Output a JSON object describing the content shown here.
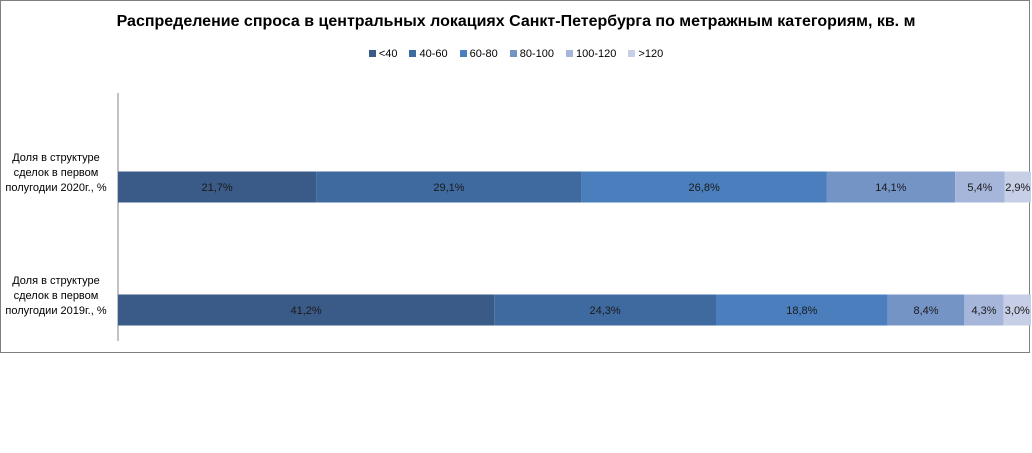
{
  "chart_data": {
    "type": "bar",
    "orientation": "horizontal",
    "stacked": "percent",
    "title": "Распределение спроса в центральных локациях Санкт-Петербурга по метражным категориям, кв. м",
    "legend_position": "top",
    "categories": [
      "Доля в структуре сделок в первом полугодии 2020г., %",
      "Доля в структуре сделок в первом полугодии 2019г., %"
    ],
    "series": [
      {
        "name": "<40",
        "color": "#3a5a87",
        "values": [
          21.7,
          41.2
        ],
        "labels": [
          "21,7%",
          "41,2%"
        ]
      },
      {
        "name": "40-60",
        "color": "#3f6aa0",
        "values": [
          29.1,
          24.3
        ],
        "labels": [
          "29,1%",
          "24,3%"
        ]
      },
      {
        "name": "60-80",
        "color": "#4a7ebc",
        "values": [
          26.8,
          18.8
        ],
        "labels": [
          "26,8%",
          "18,8%"
        ]
      },
      {
        "name": "80-100",
        "color": "#7494c6",
        "values": [
          14.1,
          8.4
        ],
        "labels": [
          "14,1%",
          "8,4%"
        ]
      },
      {
        "name": "100-120",
        "color": "#a5b6da",
        "values": [
          5.4,
          4.3
        ],
        "labels": [
          "5,4%",
          "4,3%"
        ]
      },
      {
        "name": ">120",
        "color": "#c6cfe6",
        "values": [
          2.9,
          3.0
        ],
        "labels": [
          "2,9%",
          "3,0%"
        ]
      }
    ],
    "grid": false
  }
}
